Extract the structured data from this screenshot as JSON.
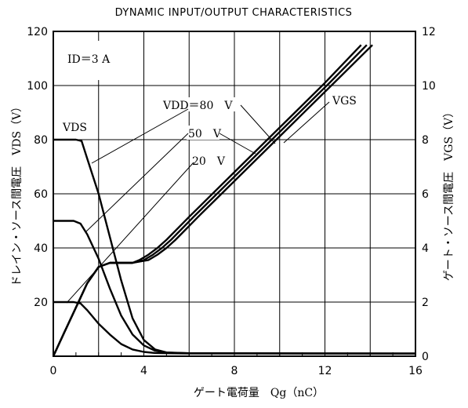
{
  "chart_data": {
    "type": "line",
    "title": "DYNAMIC INPUT/OUTPUT CHARACTERISTICS",
    "xlabel": "ゲート電荷量　Qg（nC）",
    "ylabel_left": "ドレイン・ソース間電圧　VDS（V）",
    "ylabel_right": "ゲート・ソース間電圧　VGS（V）",
    "x_ticks": [
      "0",
      "4",
      "8",
      "12",
      "16"
    ],
    "y_left_ticks": [
      "20",
      "40",
      "60",
      "80",
      "100",
      "120"
    ],
    "y_right_ticks": [
      "0",
      "2",
      "4",
      "6",
      "8",
      "10",
      "12"
    ],
    "xlim": [
      0,
      16
    ],
    "ylim_left": [
      0,
      120
    ],
    "ylim_right": [
      0,
      12
    ],
    "grid": true,
    "condition": "ID＝3 A",
    "annotations": {
      "vds": "VDS",
      "vgs": "VGS",
      "vdd80": "VDD＝80　V",
      "vdd50": "50　V",
      "vdd20": "20　V"
    },
    "series": [
      {
        "name": "VDS (VDD=80 V)",
        "axis": "left",
        "x": [
          0,
          1.0,
          1.25,
          1.5,
          2.0,
          2.5,
          3.0,
          3.5,
          4.0,
          4.5,
          5.0,
          6.0,
          16
        ],
        "y": [
          80,
          80,
          79.5,
          73,
          60,
          44,
          28,
          14,
          6,
          2.5,
          1.4,
          1.1,
          1.0
        ]
      },
      {
        "name": "VDS (VDD=50 V)",
        "axis": "left",
        "x": [
          0,
          0.9,
          1.2,
          1.5,
          2.0,
          2.5,
          3.0,
          3.5,
          4.0,
          4.5,
          5.0,
          6.0,
          16
        ],
        "y": [
          50,
          50,
          49,
          45,
          36,
          25,
          15,
          8,
          4,
          2,
          1.3,
          1.1,
          1.0
        ]
      },
      {
        "name": "VDS (VDD=20 V)",
        "axis": "left",
        "x": [
          0,
          0.9,
          1.2,
          1.5,
          2.0,
          2.5,
          3.0,
          3.5,
          4.0,
          4.5,
          5.0,
          6.0,
          16
        ],
        "y": [
          20,
          20,
          19.5,
          17,
          12,
          8,
          4.5,
          2.5,
          1.6,
          1.2,
          1.1,
          1.0,
          1.0
        ]
      },
      {
        "name": "VGS (VDD=80 V)",
        "axis": "right",
        "x": [
          0,
          0.5,
          1.0,
          1.5,
          2.0,
          2.5,
          3.5,
          3.8,
          4.2,
          4.6,
          5.0,
          6.0,
          8.0,
          10.0,
          12.0,
          13.6
        ],
        "y": [
          0,
          0.9,
          1.8,
          2.7,
          3.3,
          3.45,
          3.45,
          3.55,
          3.75,
          4.0,
          4.3,
          5.15,
          6.8,
          8.45,
          10.1,
          11.5
        ]
      },
      {
        "name": "VGS (VDD=50 V)",
        "axis": "right",
        "x": [
          0,
          0.5,
          1.0,
          1.5,
          2.0,
          2.5,
          3.5,
          4.0,
          4.4,
          4.8,
          5.2,
          6.2,
          8.2,
          10.2,
          12.2,
          13.85
        ],
        "y": [
          0,
          0.9,
          1.8,
          2.7,
          3.3,
          3.45,
          3.45,
          3.55,
          3.75,
          4.0,
          4.3,
          5.15,
          6.8,
          8.45,
          10.1,
          11.5
        ]
      },
      {
        "name": "VGS (VDD=20 V)",
        "axis": "right",
        "x": [
          0,
          0.5,
          1.0,
          1.5,
          2.0,
          2.5,
          3.5,
          4.2,
          4.6,
          5.0,
          5.4,
          6.4,
          8.4,
          10.4,
          12.4,
          14.1
        ],
        "y": [
          0,
          0.9,
          1.8,
          2.7,
          3.3,
          3.45,
          3.45,
          3.55,
          3.75,
          4.0,
          4.3,
          5.15,
          6.8,
          8.45,
          10.1,
          11.5
        ]
      }
    ]
  }
}
